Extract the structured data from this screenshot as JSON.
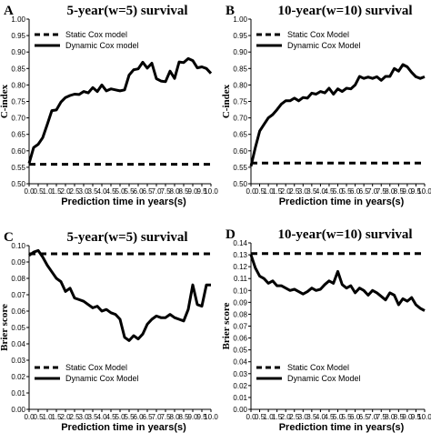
{
  "chart_data": [
    {
      "letter": "A",
      "type": "line",
      "title": "5-year(w=5) survival",
      "xlabel": "Prediction time in years(s)",
      "ylabel": "C-index",
      "xlim": [
        0,
        10
      ],
      "ylim": [
        0.5,
        1.0
      ],
      "xticks": [
        "0.0",
        "0.5",
        "1.0",
        "1.5",
        "2.0",
        "2.5",
        "3.0",
        "3.5",
        "4.0",
        "4.5",
        "5.0",
        "5.5",
        "6.0",
        "6.5",
        "7.0",
        "7.5",
        "8.0",
        "8.5",
        "9.0",
        "9.5",
        "10.0"
      ],
      "yticks": [
        "0.50",
        "0.55",
        "0.60",
        "0.65",
        "0.70",
        "0.75",
        "0.80",
        "0.85",
        "0.90",
        "0.95",
        "1.00"
      ],
      "legend_position": "top-left",
      "series": [
        {
          "name": "Static Cox model",
          "style": "dashed",
          "x": [
            0,
            10
          ],
          "y": [
            0.559,
            0.559
          ]
        },
        {
          "name": "Dynamic Cox model",
          "style": "solid",
          "x": [
            0.0,
            0.25,
            0.5,
            0.75,
            1.0,
            1.25,
            1.5,
            1.75,
            2.0,
            2.25,
            2.5,
            2.75,
            3.0,
            3.25,
            3.5,
            3.75,
            4.0,
            4.25,
            4.5,
            4.75,
            5.0,
            5.25,
            5.5,
            5.75,
            6.0,
            6.25,
            6.5,
            6.75,
            7.0,
            7.25,
            7.5,
            7.75,
            8.0,
            8.25,
            8.5,
            8.75,
            9.0,
            9.25,
            9.5,
            9.75,
            10.0
          ],
          "y": [
            0.562,
            0.61,
            0.62,
            0.64,
            0.68,
            0.722,
            0.724,
            0.748,
            0.762,
            0.768,
            0.772,
            0.771,
            0.78,
            0.776,
            0.792,
            0.78,
            0.8,
            0.782,
            0.788,
            0.785,
            0.782,
            0.785,
            0.83,
            0.846,
            0.849,
            0.869,
            0.851,
            0.866,
            0.819,
            0.812,
            0.81,
            0.842,
            0.82,
            0.87,
            0.868,
            0.88,
            0.874,
            0.852,
            0.855,
            0.85,
            0.835
          ]
        }
      ]
    },
    {
      "letter": "B",
      "type": "line",
      "title": "10-year(w=10) survival",
      "xlabel": "Prediction time in years(s)",
      "ylabel": "C-index",
      "xlim": [
        0,
        10
      ],
      "ylim": [
        0.5,
        1.0
      ],
      "xticks": [
        "0.0",
        "0.5",
        "1.0",
        "1.5",
        "2.0",
        "2.5",
        "3.0",
        "3.5",
        "4.0",
        "4.5",
        "5.0",
        "5.5",
        "6.0",
        "6.5",
        "7.0",
        "7.5",
        "8.0",
        "8.5",
        "9.0",
        "9.5",
        "10.0"
      ],
      "yticks": [
        "0.50",
        "0.55",
        "0.60",
        "0.65",
        "0.70",
        "0.75",
        "0.80",
        "0.85",
        "0.90",
        "0.95",
        "1.00"
      ],
      "legend_position": "top-left",
      "series": [
        {
          "name": "Static Cox Model",
          "style": "dashed",
          "x": [
            0,
            10
          ],
          "y": [
            0.563,
            0.563
          ]
        },
        {
          "name": "Dynamic Cox Model",
          "style": "solid",
          "x": [
            0.0,
            0.25,
            0.5,
            0.75,
            1.0,
            1.25,
            1.5,
            1.75,
            2.0,
            2.25,
            2.5,
            2.75,
            3.0,
            3.25,
            3.5,
            3.75,
            4.0,
            4.25,
            4.5,
            4.75,
            5.0,
            5.25,
            5.5,
            5.75,
            6.0,
            6.25,
            6.5,
            6.75,
            7.0,
            7.25,
            7.5,
            7.75,
            8.0,
            8.25,
            8.5,
            8.75,
            9.0,
            9.25,
            9.5,
            9.75,
            10.0
          ],
          "y": [
            0.553,
            0.61,
            0.66,
            0.68,
            0.7,
            0.71,
            0.725,
            0.742,
            0.752,
            0.752,
            0.76,
            0.752,
            0.762,
            0.76,
            0.775,
            0.772,
            0.78,
            0.776,
            0.79,
            0.772,
            0.788,
            0.78,
            0.79,
            0.788,
            0.8,
            0.826,
            0.82,
            0.824,
            0.82,
            0.825,
            0.814,
            0.826,
            0.826,
            0.85,
            0.842,
            0.862,
            0.855,
            0.838,
            0.825,
            0.82,
            0.825
          ]
        }
      ]
    },
    {
      "letter": "C",
      "type": "line",
      "title": "5-year(w=5) survival",
      "xlabel": "Prediction time in years(s)",
      "ylabel": "Brier score",
      "xlim": [
        0,
        10
      ],
      "ylim": [
        0.0,
        0.1
      ],
      "xticks": [
        "0.0",
        "0.5",
        "1.0",
        "1.5",
        "2.0",
        "2.5",
        "3.0",
        "3.5",
        "4.0",
        "4.5",
        "5.0",
        "5.5",
        "6.0",
        "6.5",
        "7.0",
        "7.5",
        "8.0",
        "8.5",
        "9.0",
        "9.5",
        "10.0"
      ],
      "yticks": [
        "0.00",
        "0.01",
        "0.02",
        "0.03",
        "0.04",
        "0.05",
        "0.06",
        "0.07",
        "0.08",
        "0.09",
        "0.10"
      ],
      "legend_position": "bottom-left",
      "series": [
        {
          "name": "Static Cox Model",
          "style": "dashed",
          "x": [
            0,
            10
          ],
          "y": [
            0.095,
            0.095
          ]
        },
        {
          "name": "Dynamic Cox Model",
          "style": "solid",
          "x": [
            0.0,
            0.25,
            0.5,
            0.75,
            1.0,
            1.25,
            1.5,
            1.75,
            2.0,
            2.25,
            2.5,
            2.75,
            3.0,
            3.25,
            3.5,
            3.75,
            4.0,
            4.25,
            4.5,
            4.75,
            5.0,
            5.25,
            5.5,
            5.75,
            6.0,
            6.25,
            6.5,
            6.75,
            7.0,
            7.25,
            7.5,
            7.75,
            8.0,
            8.25,
            8.5,
            8.75,
            9.0,
            9.25,
            9.5,
            9.75,
            10.0
          ],
          "y": [
            0.094,
            0.096,
            0.097,
            0.093,
            0.088,
            0.084,
            0.08,
            0.078,
            0.072,
            0.074,
            0.068,
            0.067,
            0.066,
            0.064,
            0.062,
            0.063,
            0.06,
            0.061,
            0.059,
            0.058,
            0.055,
            0.044,
            0.042,
            0.045,
            0.043,
            0.046,
            0.052,
            0.055,
            0.057,
            0.056,
            0.056,
            0.058,
            0.056,
            0.055,
            0.054,
            0.061,
            0.076,
            0.064,
            0.063,
            0.076,
            0.076
          ]
        }
      ]
    },
    {
      "letter": "D",
      "type": "line",
      "title": "10-year(w=10) survival",
      "xlabel": "Prediction time in years(s)",
      "ylabel": "Brier score",
      "xlim": [
        0,
        10
      ],
      "ylim": [
        0.0,
        0.14
      ],
      "xticks": [
        "0.0",
        "0.5",
        "1.0",
        "1.5",
        "2.0",
        "2.5",
        "3.0",
        "3.5",
        "4.0",
        "4.5",
        "5.0",
        "5.5",
        "6.0",
        "6.5",
        "7.0",
        "7.5",
        "8.0",
        "8.5",
        "9.0",
        "9.5",
        "10.0"
      ],
      "yticks": [
        "0.00",
        "0.01",
        "0.02",
        "0.03",
        "0.04",
        "0.05",
        "0.06",
        "0.07",
        "0.08",
        "0.09",
        "0.10",
        "0.11",
        "0.12",
        "0.13",
        "0.14"
      ],
      "legend_position": "bottom-left",
      "series": [
        {
          "name": "Static Cox Model",
          "style": "dashed",
          "x": [
            0,
            10
          ],
          "y": [
            0.131,
            0.131
          ]
        },
        {
          "name": "Dynamic Cox Model",
          "style": "solid",
          "x": [
            0.0,
            0.25,
            0.5,
            0.75,
            1.0,
            1.25,
            1.5,
            1.75,
            2.0,
            2.25,
            2.5,
            2.75,
            3.0,
            3.25,
            3.5,
            3.75,
            4.0,
            4.25,
            4.5,
            4.75,
            5.0,
            5.25,
            5.5,
            5.75,
            6.0,
            6.25,
            6.5,
            6.75,
            7.0,
            7.25,
            7.5,
            7.75,
            8.0,
            8.25,
            8.5,
            8.75,
            9.0,
            9.25,
            9.5,
            9.75,
            10.0
          ],
          "y": [
            0.13,
            0.119,
            0.112,
            0.11,
            0.106,
            0.108,
            0.104,
            0.104,
            0.102,
            0.1,
            0.101,
            0.099,
            0.097,
            0.099,
            0.102,
            0.1,
            0.101,
            0.105,
            0.108,
            0.106,
            0.116,
            0.105,
            0.102,
            0.104,
            0.098,
            0.102,
            0.1,
            0.096,
            0.1,
            0.098,
            0.095,
            0.092,
            0.098,
            0.096,
            0.088,
            0.093,
            0.091,
            0.094,
            0.088,
            0.085,
            0.083
          ]
        }
      ]
    }
  ]
}
